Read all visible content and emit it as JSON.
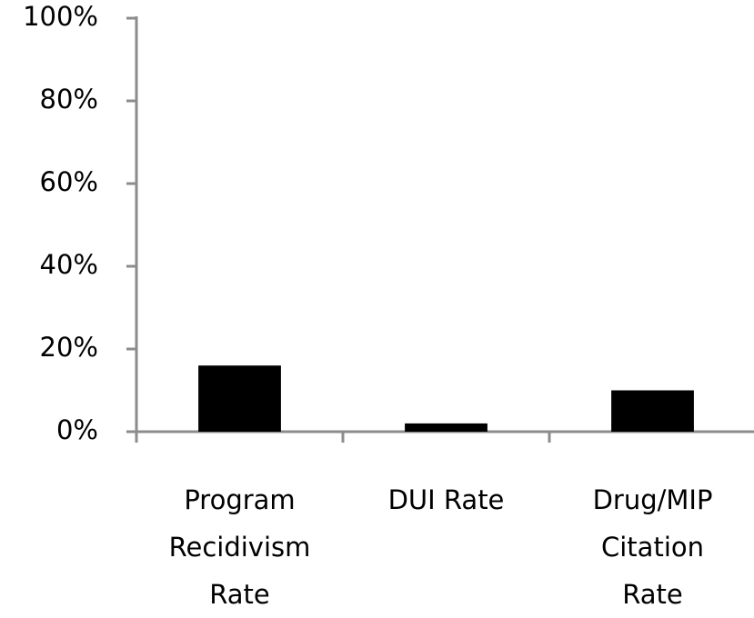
{
  "chart_data": {
    "type": "bar",
    "categories": [
      "Program Recidivism Rate",
      "DUI Rate",
      "Drug/MIP Citation Rate"
    ],
    "values": [
      16,
      2,
      10
    ],
    "color": "#000000",
    "ylim": [
      0,
      100
    ],
    "yticks": [
      {
        "value": 0,
        "label": "0%"
      },
      {
        "value": 20,
        "label": "20%"
      },
      {
        "value": 40,
        "label": "40%"
      },
      {
        "value": 60,
        "label": "60%"
      },
      {
        "value": 80,
        "label": "80%"
      },
      {
        "value": 100,
        "label": "100%"
      }
    ],
    "grid": false
  }
}
